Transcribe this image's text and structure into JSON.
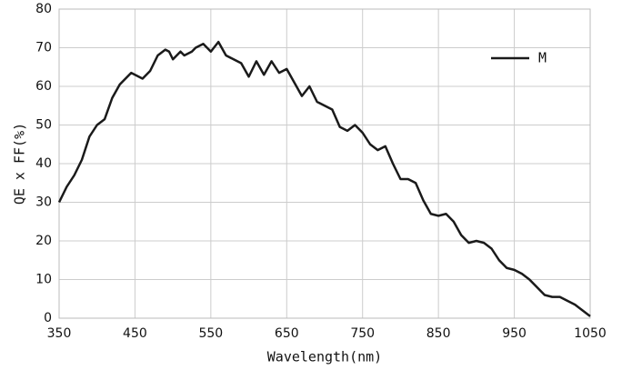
{
  "chart_data": {
    "type": "line",
    "xlabel": "Wavelength(nm)",
    "ylabel": "QE x FF(%)",
    "xlim": [
      350,
      1050
    ],
    "ylim": [
      0,
      80
    ],
    "xticks": [
      350,
      450,
      550,
      650,
      750,
      850,
      950,
      1050
    ],
    "yticks": [
      0,
      10,
      20,
      30,
      40,
      50,
      60,
      70,
      80
    ],
    "grid": true,
    "legend": "upper right",
    "series": [
      {
        "name": "M",
        "color": "#1a1a1a",
        "x": [
          350,
          360,
          370,
          380,
          385,
          390,
          400,
          410,
          420,
          430,
          445,
          460,
          470,
          480,
          490,
          495,
          500,
          510,
          515,
          525,
          530,
          540,
          550,
          560,
          570,
          580,
          590,
          600,
          610,
          620,
          630,
          640,
          650,
          660,
          670,
          680,
          690,
          700,
          710,
          720,
          730,
          740,
          750,
          760,
          770,
          780,
          790,
          800,
          810,
          820,
          830,
          840,
          850,
          860,
          870,
          880,
          890,
          900,
          910,
          920,
          930,
          940,
          950,
          960,
          970,
          990,
          1000,
          1010,
          1020,
          1030,
          1040,
          1050
        ],
        "values": [
          30,
          34,
          37,
          41,
          44,
          47,
          50,
          51.5,
          57,
          60.5,
          63.5,
          62,
          64,
          68,
          69.5,
          69,
          67,
          69,
          68,
          69,
          70,
          71,
          69,
          71.5,
          68,
          67,
          66,
          62.5,
          66.5,
          63,
          66.5,
          63.5,
          64.5,
          61,
          57.5,
          60,
          56,
          55,
          54,
          49.5,
          48.5,
          50,
          48,
          45,
          43.5,
          44.5,
          40,
          36,
          36,
          35,
          30.5,
          27,
          26.5,
          27,
          25,
          21.5,
          19.5,
          20,
          19.5,
          18,
          15,
          13,
          12.5,
          11.5,
          10,
          6,
          5.5,
          5.5,
          4.5,
          3.5,
          2,
          0.5
        ]
      }
    ]
  }
}
